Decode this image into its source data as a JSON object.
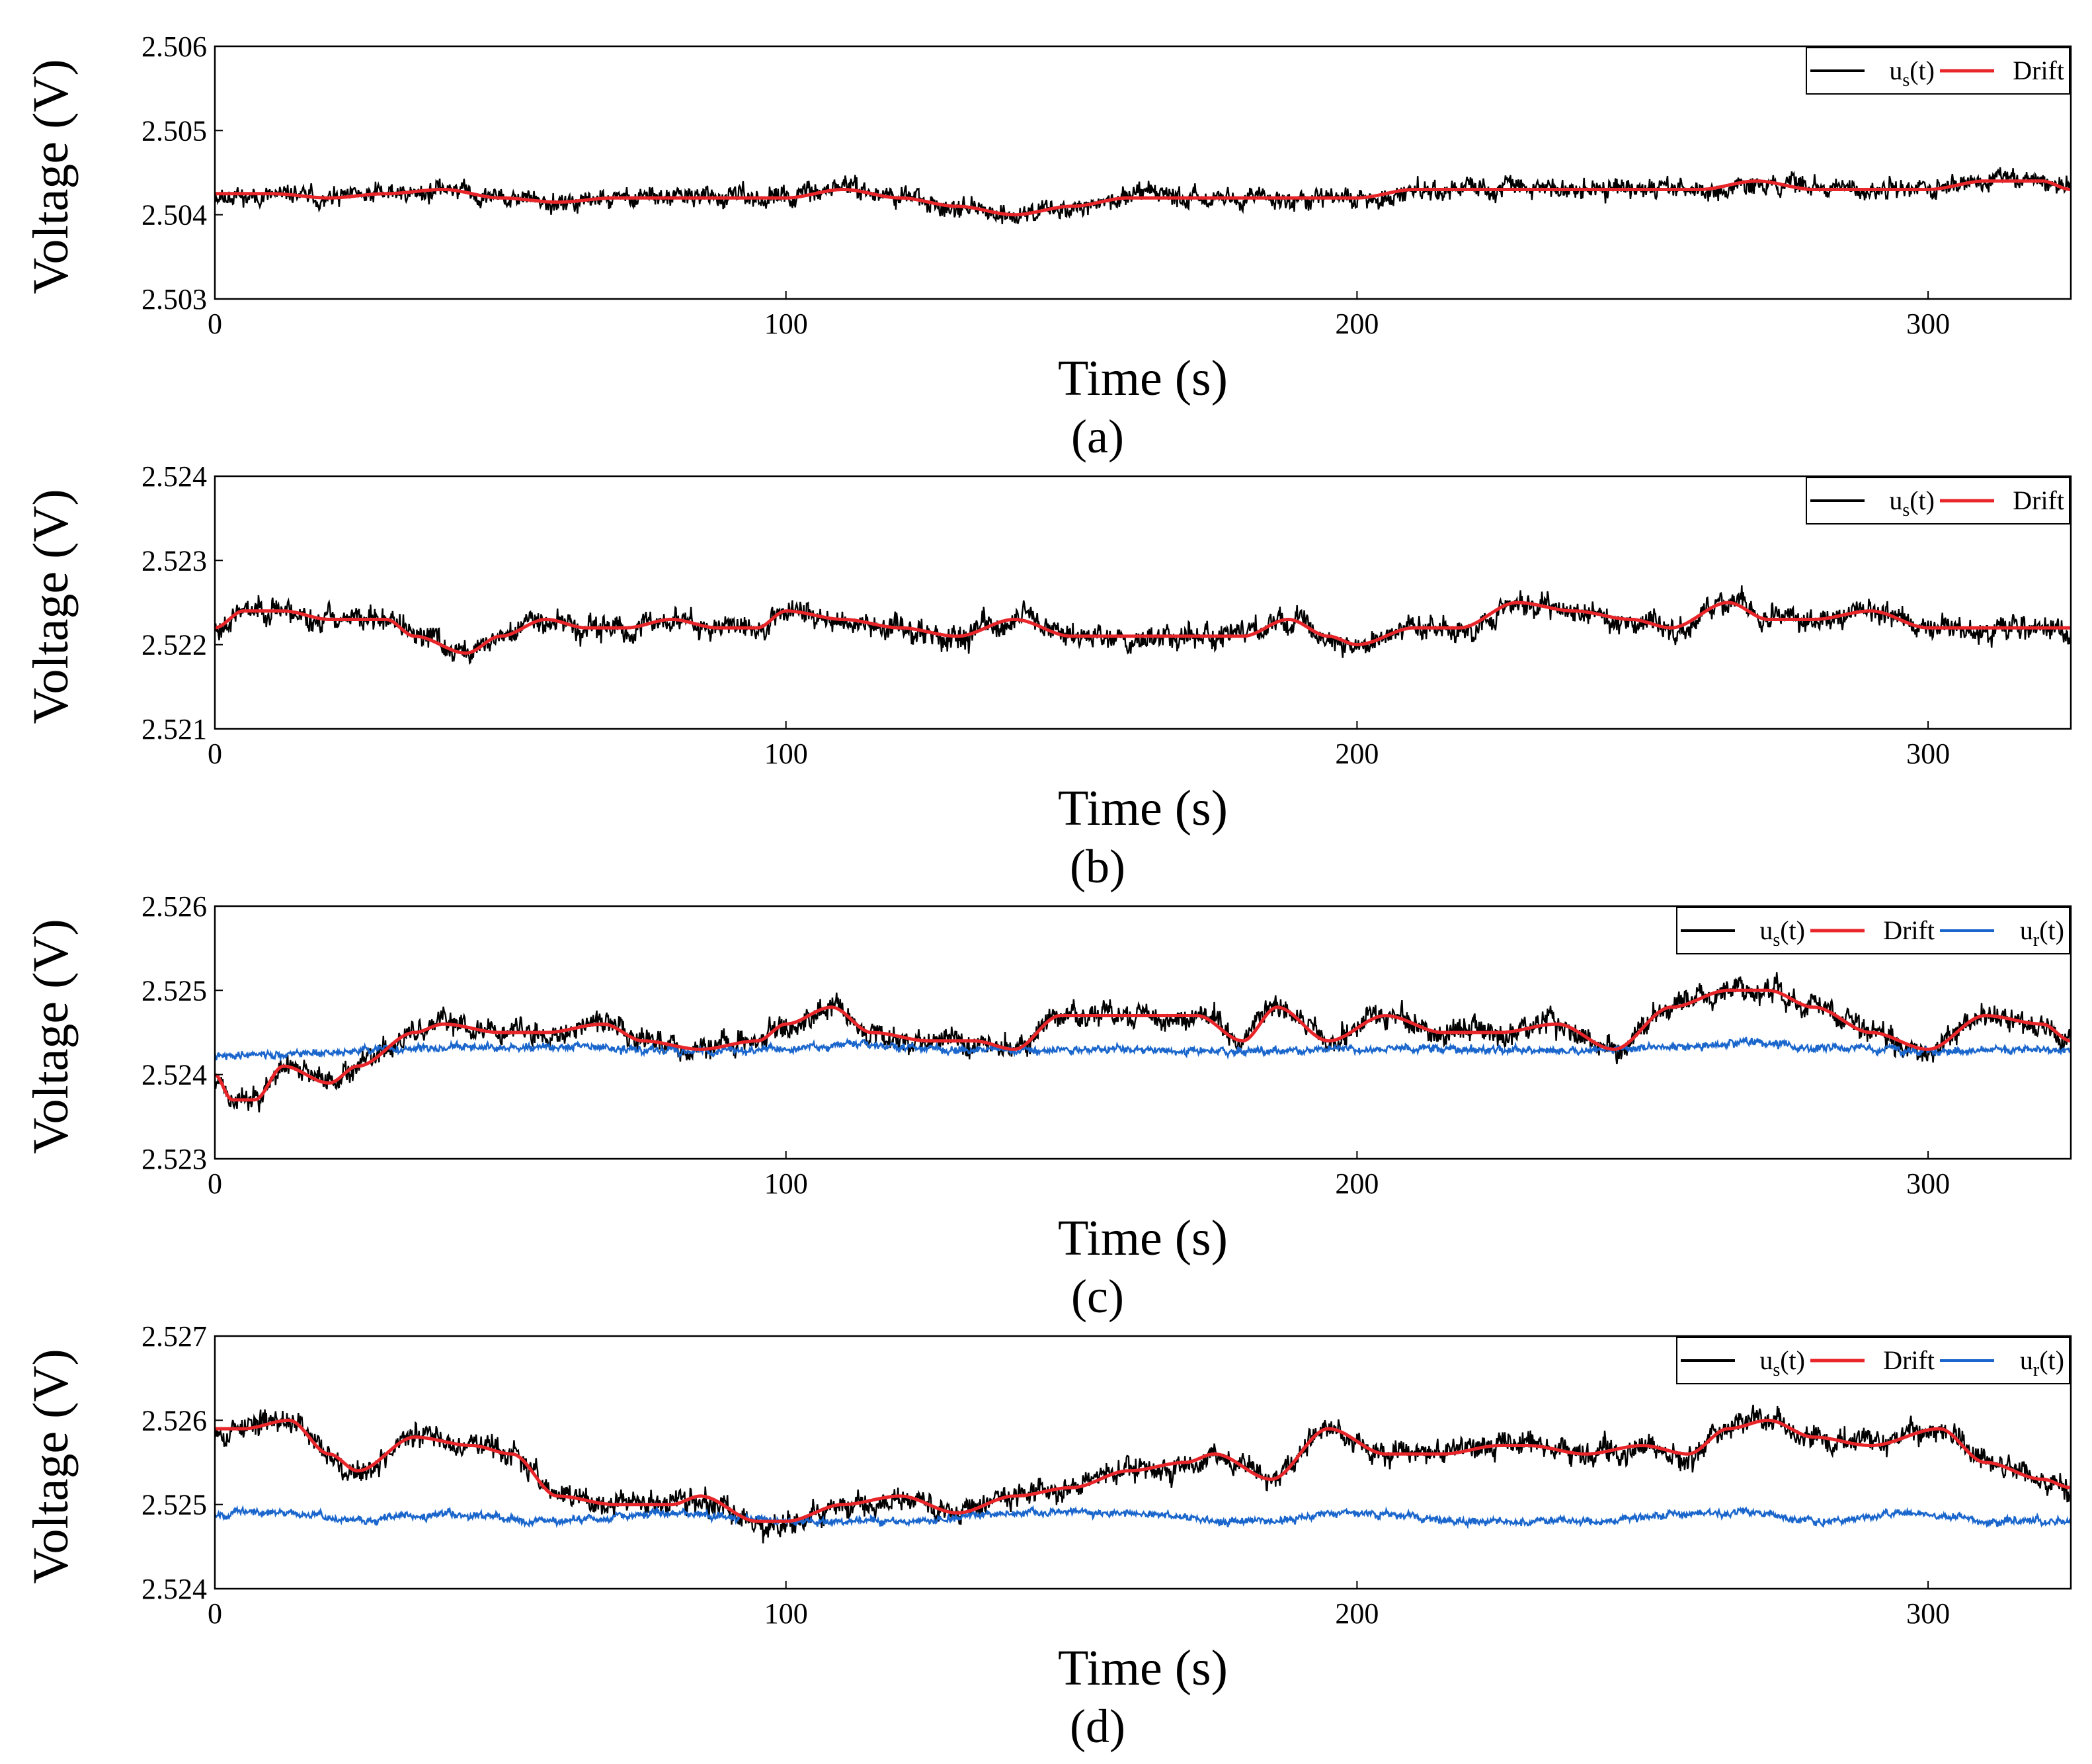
{
  "figure": {
    "panels_count": 4
  },
  "chart_data": [
    {
      "type": "line",
      "panel_label": "(a)",
      "xlabel": "Time (s)",
      "ylabel": "Voltage (V)",
      "xlim": [
        0,
        325
      ],
      "ylim": [
        2.503,
        2.506
      ],
      "x_ticks": [
        0,
        100,
        200,
        300
      ],
      "x_tick_labels": [
        "0",
        "100",
        "200",
        "300"
      ],
      "y_ticks": [
        2.503,
        2.504,
        2.505,
        2.506
      ],
      "y_tick_labels": [
        "2.503",
        "2.504",
        "2.505",
        "2.506"
      ],
      "legend": {
        "placement": "top-right",
        "entries": [
          {
            "main": "u",
            "sub": "s",
            "rest": "(t)",
            "color": "#000000"
          },
          {
            "main": "Drift",
            "sub": "",
            "rest": "",
            "color": "#e8262a"
          }
        ]
      },
      "series": [
        {
          "name": "u_s(t)",
          "color": "#000000",
          "style": "noisy",
          "noise_amplitude": 0.00013,
          "seed": 11,
          "base_series": "Drift"
        },
        {
          "name": "Drift",
          "color": "#e8262a",
          "x": [
            0,
            10,
            20,
            30,
            40,
            50,
            60,
            70,
            80,
            90,
            100,
            110,
            120,
            130,
            140,
            150,
            160,
            170,
            180,
            190,
            200,
            210,
            220,
            230,
            240,
            250,
            260,
            270,
            280,
            290,
            300,
            310,
            320,
            325
          ],
          "values": [
            2.50425,
            2.50425,
            2.5042,
            2.50425,
            2.5043,
            2.5042,
            2.50415,
            2.5042,
            2.5042,
            2.5042,
            2.5042,
            2.5043,
            2.5042,
            2.5041,
            2.504,
            2.5041,
            2.5042,
            2.5042,
            2.5042,
            2.5042,
            2.5042,
            2.5043,
            2.5043,
            2.5043,
            2.5043,
            2.5043,
            2.5043,
            2.5044,
            2.5043,
            2.5043,
            2.5043,
            2.5044,
            2.5044,
            2.5043
          ]
        }
      ]
    },
    {
      "type": "line",
      "panel_label": "(b)",
      "xlabel": "Time (s)",
      "ylabel": "Voltage (V)",
      "xlim": [
        0,
        325
      ],
      "ylim": [
        2.521,
        2.524
      ],
      "x_ticks": [
        0,
        100,
        200,
        300
      ],
      "x_tick_labels": [
        "0",
        "100",
        "200",
        "300"
      ],
      "y_ticks": [
        2.521,
        2.522,
        2.523,
        2.524
      ],
      "y_tick_labels": [
        "2.521",
        "2.522",
        "2.523",
        "2.524"
      ],
      "legend": {
        "placement": "top-right",
        "entries": [
          {
            "main": "u",
            "sub": "s",
            "rest": "(t)",
            "color": "#000000"
          },
          {
            "main": "Drift",
            "sub": "",
            "rest": "",
            "color": "#e8262a"
          }
        ]
      },
      "series": [
        {
          "name": "u_s(t)",
          "color": "#000000",
          "style": "noisy",
          "noise_amplitude": 0.00016,
          "seed": 23,
          "base_series": "Drift"
        },
        {
          "name": "Drift",
          "color": "#e8262a",
          "x": [
            0,
            5,
            12,
            20,
            30,
            35,
            44,
            50,
            58,
            65,
            72,
            80,
            88,
            95,
            100,
            110,
            120,
            130,
            140,
            150,
            160,
            170,
            180,
            188,
            195,
            200,
            210,
            218,
            228,
            238,
            248,
            255,
            265,
            272,
            280,
            290,
            300,
            310,
            320,
            325
          ],
          "values": [
            2.5222,
            2.5224,
            2.5224,
            2.5223,
            2.5223,
            2.5221,
            2.5219,
            2.5221,
            2.5223,
            2.5222,
            2.5222,
            2.5223,
            2.5222,
            2.5222,
            2.5224,
            2.5223,
            2.5222,
            2.5221,
            2.5223,
            2.5221,
            2.5221,
            2.5221,
            2.5221,
            2.5223,
            2.5221,
            2.522,
            2.5222,
            2.5222,
            2.5225,
            2.5224,
            2.5223,
            2.5222,
            2.5225,
            2.5223,
            2.5223,
            2.5224,
            2.5222,
            2.5222,
            2.5222,
            2.5222
          ]
        }
      ]
    },
    {
      "type": "line",
      "panel_label": "(c)",
      "xlabel": "Time (s)",
      "ylabel": "Voltage (V)",
      "xlim": [
        0,
        325
      ],
      "ylim": [
        2.523,
        2.526
      ],
      "x_ticks": [
        0,
        100,
        200,
        300
      ],
      "x_tick_labels": [
        "0",
        "100",
        "200",
        "300"
      ],
      "y_ticks": [
        2.523,
        2.524,
        2.525,
        2.526
      ],
      "y_tick_labels": [
        "2.523",
        "2.524",
        "2.525",
        "2.526"
      ],
      "legend": {
        "placement": "top-right",
        "entries": [
          {
            "main": "u",
            "sub": "s",
            "rest": "(t)",
            "color": "#000000"
          },
          {
            "main": "Drift",
            "sub": "",
            "rest": "",
            "color": "#e8262a"
          },
          {
            "main": "u",
            "sub": "r",
            "rest": "(t)",
            "color": "#1a66cc"
          }
        ]
      },
      "series": [
        {
          "name": "u_s(t)",
          "color": "#000000",
          "style": "noisy",
          "noise_amplitude": 0.00016,
          "seed": 37,
          "base_series": "Drift"
        },
        {
          "name": "Drift",
          "color": "#e8262a",
          "x": [
            0,
            3,
            7,
            12,
            20,
            25,
            35,
            40,
            50,
            58,
            68,
            75,
            85,
            95,
            100,
            108,
            115,
            125,
            133,
            140,
            148,
            155,
            165,
            172,
            180,
            186,
            195,
            205,
            215,
            225,
            235,
            245,
            255,
            265,
            272,
            280,
            290,
            300,
            310,
            320,
            325
          ],
          "values": [
            2.524,
            2.5237,
            2.5237,
            2.5241,
            2.5239,
            2.5241,
            2.5245,
            2.5246,
            2.5245,
            2.5245,
            2.5246,
            2.5244,
            2.5243,
            2.5244,
            2.5246,
            2.5248,
            2.5245,
            2.5244,
            2.5244,
            2.5243,
            2.5247,
            2.5247,
            2.5247,
            2.5247,
            2.5244,
            2.5248,
            2.5244,
            2.5247,
            2.5245,
            2.5245,
            2.5246,
            2.5243,
            2.5248,
            2.525,
            2.525,
            2.5248,
            2.5245,
            2.5243,
            2.5247,
            2.5246,
            2.5244
          ]
        },
        {
          "name": "u_r(t)",
          "color": "#1a66cc",
          "style": "noisy",
          "noise_amplitude": 5e-05,
          "seed": 41,
          "x": [
            0,
            10,
            20,
            30,
            40,
            60,
            80,
            100,
            110,
            130,
            150,
            180,
            200,
            220,
            240,
            260,
            270,
            280,
            300,
            325
          ],
          "values": [
            2.52422,
            2.52424,
            2.52426,
            2.5243,
            2.52432,
            2.52432,
            2.52428,
            2.5243,
            2.52436,
            2.5243,
            2.5243,
            2.52428,
            2.5243,
            2.5243,
            2.52428,
            2.52434,
            2.52438,
            2.52432,
            2.52428,
            2.5243
          ]
        }
      ]
    },
    {
      "type": "line",
      "panel_label": "(d)",
      "xlabel": "Time (s)",
      "ylabel": "Voltage (V)",
      "xlim": [
        0,
        325
      ],
      "ylim": [
        2.524,
        2.527
      ],
      "x_ticks": [
        0,
        100,
        200,
        300
      ],
      "x_tick_labels": [
        "0",
        "100",
        "200",
        "300"
      ],
      "y_ticks": [
        2.524,
        2.525,
        2.526,
        2.527
      ],
      "y_tick_labels": [
        "2.524",
        "2.525",
        "2.526",
        "2.527"
      ],
      "legend": {
        "placement": "top-right",
        "entries": [
          {
            "main": "u",
            "sub": "s",
            "rest": "(t)",
            "color": "#000000"
          },
          {
            "main": "Drift",
            "sub": "",
            "rest": "",
            "color": "#e8262a"
          },
          {
            "main": "u",
            "sub": "r",
            "rest": "(t)",
            "color": "#1a66cc"
          }
        ]
      },
      "series": [
        {
          "name": "u_s(t)",
          "color": "#000000",
          "style": "noisy",
          "noise_amplitude": 0.00016,
          "seed": 53,
          "base_series": "Drift"
        },
        {
          "name": "Drift",
          "color": "#e8262a",
          "x": [
            0,
            5,
            13,
            20,
            25,
            35,
            45,
            52,
            60,
            70,
            80,
            85,
            95,
            100,
            110,
            120,
            130,
            140,
            150,
            160,
            170,
            175,
            185,
            195,
            205,
            215,
            225,
            230,
            240,
            250,
            258,
            265,
            272,
            280,
            290,
            302,
            310,
            320,
            325
          ],
          "values": [
            2.5259,
            2.5259,
            2.526,
            2.5256,
            2.5254,
            2.5258,
            2.5257,
            2.5256,
            2.5251,
            2.525,
            2.525,
            2.5251,
            2.5248,
            2.5248,
            2.525,
            2.5251,
            2.5249,
            2.5251,
            2.5252,
            2.5254,
            2.5255,
            2.5256,
            2.5253,
            2.5259,
            2.5256,
            2.5256,
            2.5257,
            2.5257,
            2.5256,
            2.5257,
            2.5256,
            2.5259,
            2.526,
            2.5258,
            2.5257,
            2.5259,
            2.5255,
            2.5253,
            2.5252
          ]
        },
        {
          "name": "u_r(t)",
          "color": "#1a66cc",
          "style": "noisy",
          "noise_amplitude": 5e-05,
          "seed": 67,
          "x": [
            0,
            10,
            15,
            25,
            40,
            60,
            80,
            100,
            120,
            140,
            160,
            180,
            200,
            220,
            240,
            260,
            270,
            280,
            300,
            310,
            325
          ],
          "values": [
            2.5249,
            2.5249,
            2.5249,
            2.5248,
            2.5249,
            2.5248,
            2.5249,
            2.5248,
            2.5248,
            2.5249,
            2.5249,
            2.5248,
            2.5249,
            2.5248,
            2.5248,
            2.5249,
            2.5249,
            2.5248,
            2.5249,
            2.5248,
            2.5248
          ]
        }
      ]
    }
  ]
}
